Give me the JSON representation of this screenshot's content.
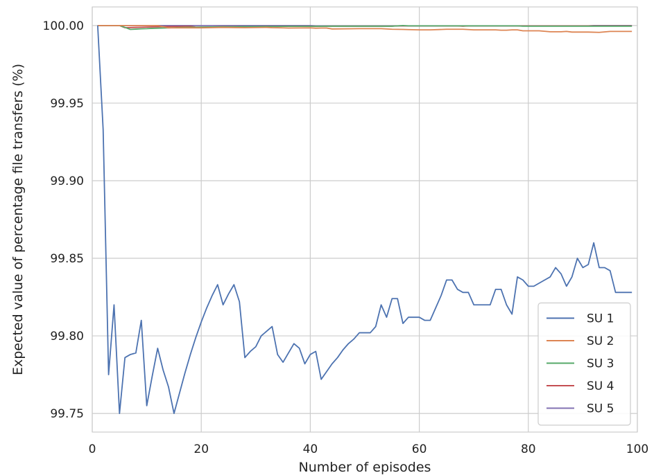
{
  "chart_data": {
    "type": "line",
    "title": "",
    "xlabel": "Number of episodes",
    "ylabel": "Expected value of percentage file transfers (%)",
    "xlim": [
      0,
      100
    ],
    "ylim": [
      99.738,
      100.012
    ],
    "xticks": [
      0,
      20,
      40,
      60,
      80,
      100
    ],
    "xtick_labels": [
      "0",
      "20",
      "40",
      "60",
      "80",
      "100"
    ],
    "yticks": [
      99.75,
      99.8,
      99.85,
      99.9,
      99.95,
      100.0
    ],
    "ytick_labels": [
      "99.75",
      "99.80",
      "99.85",
      "99.90",
      "99.95",
      "100.00"
    ],
    "grid": true,
    "legend_position": "lower-right",
    "series": [
      {
        "name": "SU 1",
        "color": "#4c72b0",
        "x": [
          1,
          2,
          3,
          4,
          5,
          6,
          7,
          8,
          9,
          10,
          11,
          12,
          13,
          14,
          15,
          16,
          17,
          18,
          19,
          20,
          21,
          22,
          23,
          24,
          25,
          26,
          27,
          28,
          29,
          30,
          31,
          32,
          33,
          34,
          35,
          36,
          37,
          38,
          39,
          40,
          41,
          42,
          43,
          44,
          45,
          46,
          47,
          48,
          49,
          50,
          51,
          52,
          53,
          54,
          55,
          56,
          57,
          58,
          59,
          60,
          61,
          62,
          63,
          64,
          65,
          66,
          67,
          68,
          69,
          70,
          71,
          72,
          73,
          74,
          75,
          76,
          77,
          78,
          79,
          80,
          81,
          82,
          83,
          84,
          85,
          86,
          87,
          88,
          89,
          90,
          91,
          92,
          93,
          94,
          95,
          96,
          97,
          98,
          99
        ],
        "y": [
          100.0,
          99.933,
          99.775,
          99.82,
          99.75,
          99.786,
          99.788,
          99.789,
          99.81,
          99.755,
          99.774,
          99.792,
          99.778,
          99.767,
          99.75,
          99.763,
          99.776,
          99.788,
          99.799,
          99.809,
          99.818,
          99.826,
          99.833,
          99.82,
          99.827,
          99.833,
          99.822,
          99.786,
          99.79,
          99.793,
          99.8,
          99.803,
          99.806,
          99.788,
          99.783,
          99.789,
          99.795,
          99.792,
          99.782,
          99.788,
          99.79,
          99.772,
          99.777,
          99.782,
          99.786,
          99.791,
          99.795,
          99.798,
          99.802,
          99.802,
          99.802,
          99.806,
          99.82,
          99.812,
          99.824,
          99.824,
          99.808,
          99.812,
          99.812,
          99.812,
          99.81,
          99.81,
          99.818,
          99.826,
          99.836,
          99.836,
          99.83,
          99.828,
          99.828,
          99.82,
          99.82,
          99.82,
          99.82,
          99.83,
          99.83,
          99.82,
          99.814,
          99.838,
          99.836,
          99.832,
          99.832,
          99.834,
          99.836,
          99.838,
          99.844,
          99.84,
          99.832,
          99.838,
          99.85,
          99.844,
          99.846,
          99.86,
          99.844,
          99.844,
          99.842,
          99.828,
          99.828,
          99.828,
          99.828
        ]
      },
      {
        "name": "SU 2",
        "color": "#dd8452",
        "x": [
          1,
          12,
          14,
          18,
          20,
          24,
          26,
          28,
          32,
          33,
          35,
          36,
          40,
          41,
          42,
          43,
          44,
          49,
          50,
          53,
          55,
          57,
          58,
          60,
          62,
          65,
          68,
          70,
          74,
          75,
          76,
          77,
          78,
          79,
          82,
          84,
          86,
          87,
          88,
          91,
          93,
          95,
          99
        ],
        "y": [
          100.0,
          100.0,
          99.9985,
          99.9985,
          99.9985,
          99.9988,
          99.9987,
          99.9986,
          99.9988,
          99.9986,
          99.9985,
          99.9984,
          99.9985,
          99.9983,
          99.9984,
          99.9984,
          99.9978,
          99.998,
          99.998,
          99.998,
          99.9976,
          99.9975,
          99.9974,
          99.9972,
          99.9972,
          99.9976,
          99.9976,
          99.9972,
          99.9972,
          99.997,
          99.997,
          99.9972,
          99.9972,
          99.9966,
          99.9966,
          99.996,
          99.996,
          99.9962,
          99.9958,
          99.9958,
          99.9956,
          99.9962,
          99.9962
        ]
      },
      {
        "name": "SU 3",
        "color": "#55a868",
        "x": [
          1,
          5,
          6,
          7,
          8,
          9,
          10,
          11,
          12,
          13,
          14,
          15,
          16,
          17,
          18,
          19,
          20,
          22,
          24,
          26,
          28,
          30,
          32,
          34,
          36,
          38,
          40,
          44,
          48,
          52,
          55,
          56,
          57,
          58,
          60,
          70,
          78,
          79,
          80,
          90,
          99
        ],
        "y": [
          100.0,
          100.0,
          99.9988,
          99.9975,
          99.9977,
          99.9979,
          99.998,
          99.9982,
          99.9983,
          99.9984,
          99.9985,
          99.9986,
          99.9987,
          99.9988,
          99.9989,
          99.9989,
          99.999,
          99.9991,
          99.9992,
          99.9992,
          99.9993,
          99.9993,
          99.9994,
          99.9994,
          99.9995,
          99.9995,
          99.9995,
          99.9996,
          99.9996,
          99.9996,
          99.9996,
          99.9998,
          100.0,
          99.9998,
          99.9998,
          99.9998,
          99.9998,
          99.9996,
          99.9996,
          99.9996,
          99.9996
        ]
      },
      {
        "name": "SU 4",
        "color": "#c44e52",
        "x": [
          1,
          5,
          6,
          7,
          8,
          9,
          10,
          11,
          12,
          13,
          14,
          15,
          16,
          17,
          18,
          19,
          20,
          22,
          24,
          26,
          28,
          30,
          32,
          34,
          36,
          38,
          40,
          44,
          48,
          52,
          55,
          56,
          57,
          58,
          60,
          64,
          67,
          68,
          69,
          70,
          80,
          90,
          99
        ],
        "y": [
          100.0,
          100.0,
          99.9986,
          99.9987,
          99.9988,
          99.9989,
          99.999,
          99.9991,
          99.9992,
          99.9993,
          99.9993,
          99.9994,
          99.9994,
          99.9995,
          99.9995,
          99.999,
          99.999,
          99.9991,
          99.9992,
          99.9992,
          99.9993,
          99.9993,
          99.9994,
          99.9994,
          99.9995,
          99.9995,
          99.9995,
          99.9996,
          99.9996,
          99.9996,
          99.9996,
          99.9998,
          99.9998,
          99.9998,
          99.9998,
          99.9998,
          99.9998,
          99.9996,
          99.9998,
          99.9998,
          99.9998,
          99.9998,
          99.9998
        ]
      },
      {
        "name": "SU 5",
        "color": "#8172b2",
        "x": [
          1,
          40,
          41,
          50,
          60,
          70,
          80,
          90,
          91,
          92,
          99
        ],
        "y": [
          100.0,
          100.0,
          99.9998,
          99.9998,
          99.9998,
          99.9998,
          99.9998,
          99.9998,
          99.9998,
          100.0,
          100.0
        ]
      }
    ]
  }
}
